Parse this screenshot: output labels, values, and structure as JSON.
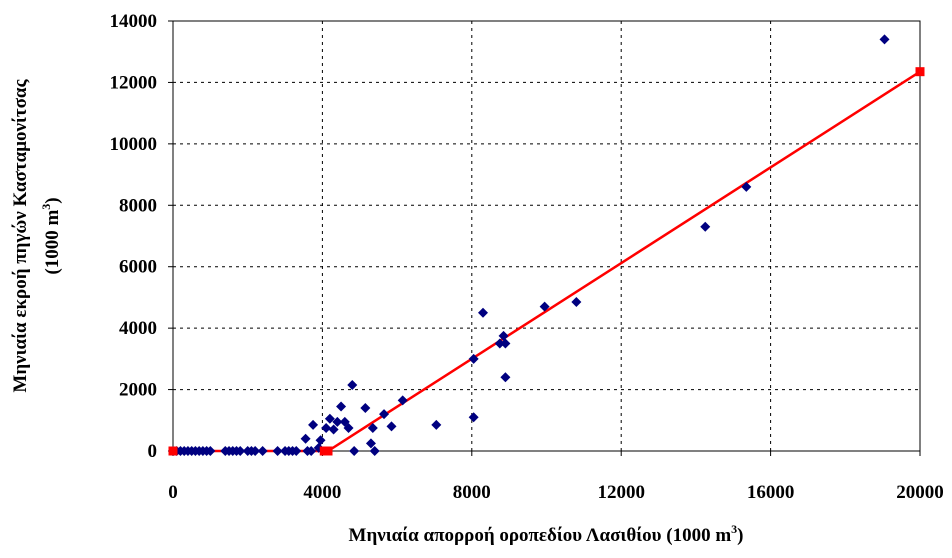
{
  "chart_data": {
    "type": "scatter",
    "xlabel": "Μηνιαία απορροή οροπεδίου Λασιθίου (1000 m",
    "xlabel_sup": "3",
    "xlabel_end": ")",
    "ylabel_line1": "Μηνιαία εκροή πηγών Κασταμονίτσας",
    "ylabel_line2": "(1000 m",
    "ylabel_sup": "3",
    "ylabel_end": ")",
    "xlim": [
      0,
      20000
    ],
    "ylim": [
      0,
      14000
    ],
    "xticks": [
      0,
      4000,
      8000,
      12000,
      16000,
      20000
    ],
    "yticks": [
      0,
      2000,
      4000,
      6000,
      8000,
      10000,
      12000,
      14000
    ],
    "grid": true,
    "colors": {
      "points": "#000080",
      "line": "#ff0000"
    },
    "series": [
      {
        "marker": "diamond",
        "points": [
          [
            0,
            0
          ],
          [
            100,
            0
          ],
          [
            200,
            0
          ],
          [
            300,
            0
          ],
          [
            400,
            0
          ],
          [
            500,
            0
          ],
          [
            600,
            0
          ],
          [
            700,
            0
          ],
          [
            800,
            0
          ],
          [
            900,
            0
          ],
          [
            1000,
            0
          ],
          [
            1400,
            0
          ],
          [
            1500,
            0
          ],
          [
            1600,
            0
          ],
          [
            1700,
            0
          ],
          [
            1800,
            0
          ],
          [
            2000,
            0
          ],
          [
            2100,
            0
          ],
          [
            2200,
            0
          ],
          [
            2400,
            0
          ],
          [
            2800,
            0
          ],
          [
            3000,
            0
          ],
          [
            3100,
            0
          ],
          [
            3200,
            0
          ],
          [
            3300,
            0
          ],
          [
            3600,
            0
          ],
          [
            3700,
            0
          ],
          [
            3550,
            400
          ],
          [
            3750,
            850
          ],
          [
            3900,
            100
          ],
          [
            3950,
            350
          ],
          [
            4100,
            750
          ],
          [
            4200,
            1050
          ],
          [
            4300,
            700
          ],
          [
            4400,
            950
          ],
          [
            4500,
            1450
          ],
          [
            4600,
            950
          ],
          [
            4700,
            750
          ],
          [
            4800,
            2150
          ],
          [
            4850,
            0
          ],
          [
            5150,
            1400
          ],
          [
            5300,
            250
          ],
          [
            5350,
            750
          ],
          [
            5400,
            0
          ],
          [
            5650,
            1200
          ],
          [
            5850,
            800
          ],
          [
            6150,
            1650
          ],
          [
            7050,
            850
          ],
          [
            8050,
            3000
          ],
          [
            8050,
            1100
          ],
          [
            8300,
            4500
          ],
          [
            8750,
            3500
          ],
          [
            8850,
            3750
          ],
          [
            8900,
            3500
          ],
          [
            8900,
            2400
          ],
          [
            9950,
            4700
          ],
          [
            10800,
            4850
          ],
          [
            14250,
            7300
          ],
          [
            15350,
            8600
          ],
          [
            19050,
            13400
          ]
        ]
      },
      {
        "marker": "square",
        "line": true,
        "points": [
          [
            0,
            0
          ],
          [
            4050,
            0
          ],
          [
            4150,
            0
          ],
          [
            20000,
            12350
          ]
        ]
      }
    ]
  }
}
